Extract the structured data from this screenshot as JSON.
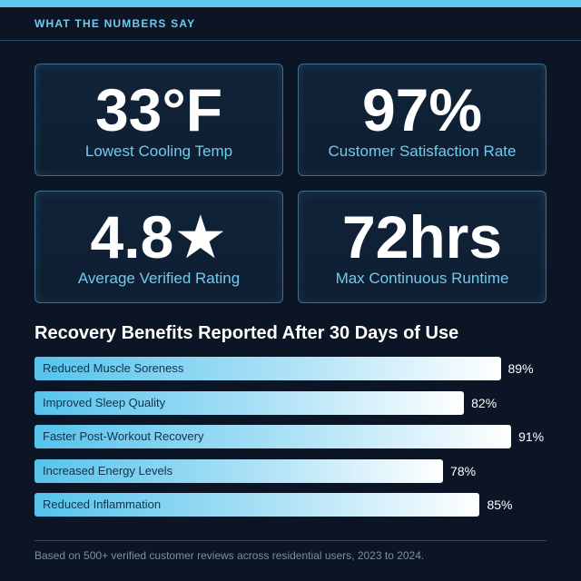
{
  "section_label": "WHAT THE NUMBERS SAY",
  "stats": [
    {
      "value": "33°F",
      "label": "Lowest Cooling Temp"
    },
    {
      "value": "97%",
      "label": "Customer Satisfaction Rate"
    },
    {
      "value": "4.8★",
      "label": "Average Verified Rating"
    },
    {
      "value": "72hrs",
      "label": "Max Continuous Runtime"
    }
  ],
  "chart_data": {
    "type": "bar",
    "orientation": "horizontal",
    "title": "Recovery Benefits Reported After 30 Days of Use",
    "categories": [
      "Reduced Muscle Soreness",
      "Improved Sleep Quality",
      "Faster Post-Workout Recovery",
      "Increased Energy Levels",
      "Reduced Inflammation"
    ],
    "values": [
      89,
      82,
      91,
      78,
      85
    ],
    "value_labels": [
      "89%",
      "82%",
      "91%",
      "78%",
      "85%"
    ],
    "xlim": [
      0,
      100
    ],
    "grid": false,
    "legend": "none"
  },
  "colors": {
    "background": "#0b1526",
    "accent": "#5fc9ef",
    "card_border": "#3b6d8c",
    "stat_label": "#6fcbed",
    "bar_start": "#56c3ec",
    "bar_end": "#ffffff"
  },
  "footnote": "Based on 500+ verified customer reviews across residential users, 2023 to 2024."
}
